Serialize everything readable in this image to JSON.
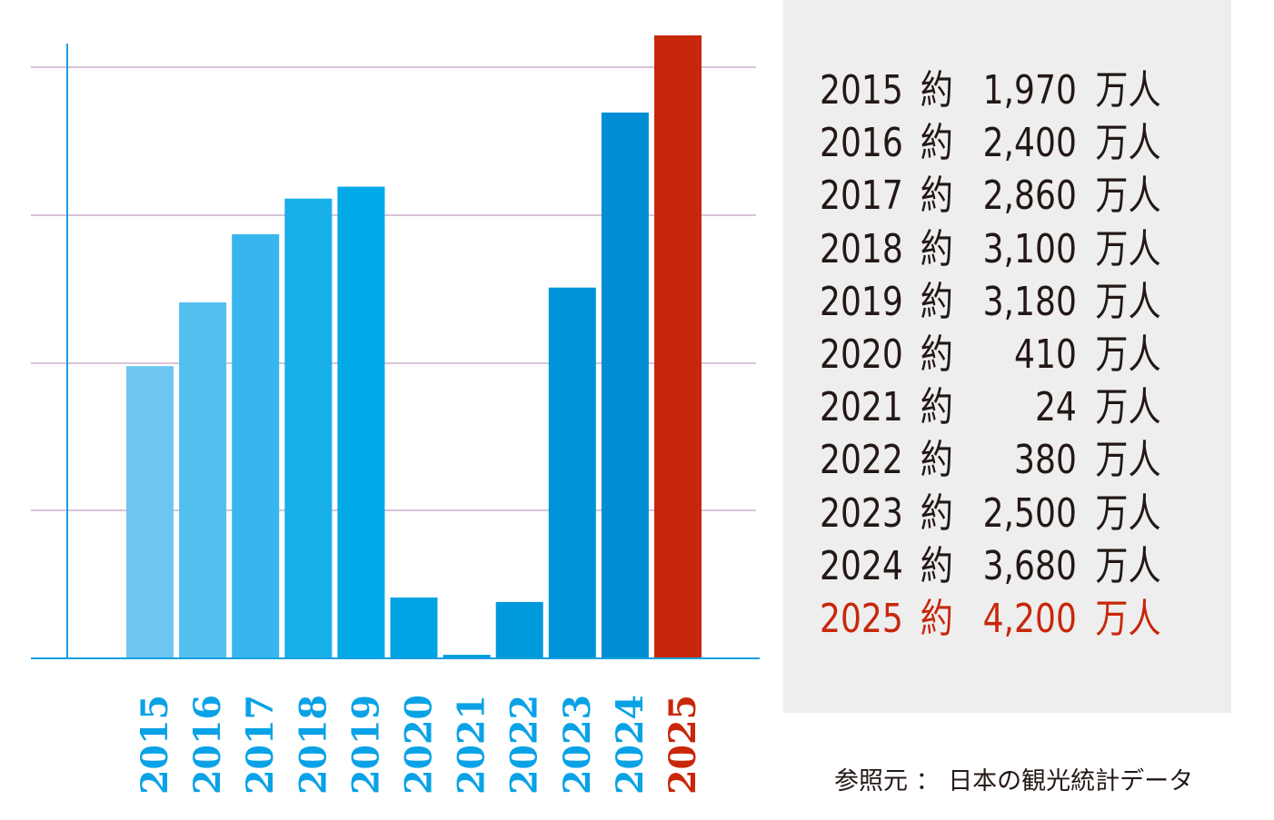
{
  "chart_data": {
    "type": "bar",
    "categories": [
      "2015",
      "2016",
      "2017",
      "2018",
      "2019",
      "2020",
      "2021",
      "2022",
      "2023",
      "2024",
      "2025"
    ],
    "values": [
      1970,
      2400,
      2860,
      3100,
      3180,
      410,
      24,
      380,
      2500,
      3680,
      4200
    ],
    "title": "",
    "xlabel": "",
    "ylabel": "",
    "ylim": [
      0,
      4200
    ],
    "grid": true,
    "bar_colors": [
      "#6cc6f0",
      "#53bfee",
      "#37b6ed",
      "#19afe9",
      "#00a9e8",
      "#00a4e4",
      "#009fe0",
      "#0099dc",
      "#0093d8",
      "#008dd4",
      "#c8270b"
    ],
    "axis_color": "#1a9ee0",
    "grid_color": "#b08ab0"
  },
  "table": {
    "prefix": "約",
    "unit": "万人",
    "rows": [
      {
        "year": "2015",
        "value": "1,970",
        "color": "#231815"
      },
      {
        "year": "2016",
        "value": "2,400",
        "color": "#231815"
      },
      {
        "year": "2017",
        "value": "2,860",
        "color": "#231815"
      },
      {
        "year": "2018",
        "value": "3,100",
        "color": "#231815"
      },
      {
        "year": "2019",
        "value": "3,180",
        "color": "#231815"
      },
      {
        "year": "2020",
        "value": "410",
        "color": "#231815"
      },
      {
        "year": "2021",
        "value": "24",
        "color": "#231815"
      },
      {
        "year": "2022",
        "value": "380",
        "color": "#231815"
      },
      {
        "year": "2023",
        "value": "2,500",
        "color": "#231815"
      },
      {
        "year": "2024",
        "value": "3,680",
        "color": "#231815"
      },
      {
        "year": "2025",
        "value": "4,200",
        "color": "#c8270b"
      }
    ]
  },
  "source": {
    "label": "参照元",
    "separator": "：",
    "text": "日本の観光統計データ"
  }
}
